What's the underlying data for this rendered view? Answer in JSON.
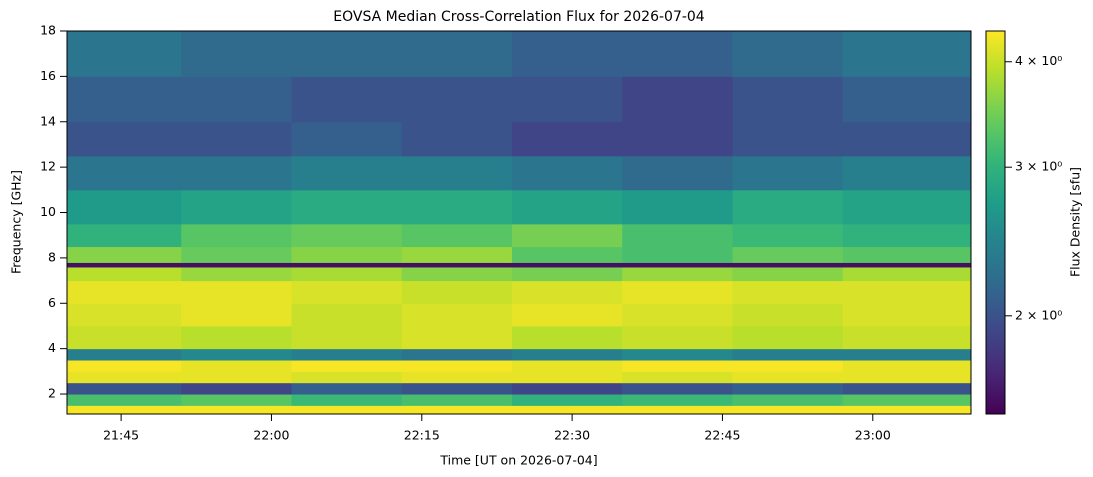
{
  "chart_data": {
    "type": "heatmap",
    "title": "EOVSA Median Cross-Correlation Flux for 2026-07-04",
    "x_label": "Time [UT on 2026-07-04]",
    "y_label": "Frequency [GHz]",
    "colorbar_label": "Flux Density [sfu]",
    "x": [
      1299.6,
      1311,
      1322,
      1333,
      1344,
      1355,
      1366,
      1377,
      1389.8
    ],
    "y": [
      1.12,
      1.5,
      2.0,
      2.5,
      3.0,
      3.5,
      4.0,
      5.0,
      6.0,
      7.0,
      7.6,
      7.8,
      8.5,
      9.5,
      11,
      12.5,
      14,
      16,
      18
    ],
    "z": [
      [
        4.3,
        4.3,
        4.3,
        4.3,
        4.3,
        4.3,
        4.3,
        4.3
      ],
      [
        3.2,
        3.3,
        3.1,
        3.2,
        3.0,
        3.1,
        3.2,
        3.3
      ],
      [
        2.0,
        1.9,
        2.1,
        2.0,
        1.9,
        2.0,
        2.1,
        2.0
      ],
      [
        4.2,
        4.2,
        4.1,
        4.2,
        4.2,
        4.1,
        4.2,
        4.2
      ],
      [
        4.3,
        4.2,
        4.3,
        4.3,
        4.2,
        4.3,
        4.3,
        4.2
      ],
      [
        2.4,
        2.5,
        2.4,
        2.3,
        2.4,
        2.5,
        2.4,
        2.4
      ],
      [
        4.0,
        3.9,
        4.0,
        4.1,
        3.9,
        4.0,
        3.9,
        4.0
      ],
      [
        4.1,
        4.2,
        4.0,
        4.1,
        4.2,
        4.1,
        4.0,
        4.1
      ],
      [
        4.2,
        4.2,
        4.1,
        4.0,
        4.1,
        4.2,
        4.1,
        4.1
      ],
      [
        3.9,
        3.7,
        3.8,
        3.6,
        3.5,
        3.7,
        3.6,
        3.8
      ],
      [
        1.6,
        1.6,
        1.6,
        1.6,
        1.6,
        1.6,
        1.6,
        1.6
      ],
      [
        3.6,
        3.4,
        3.6,
        3.7,
        3.3,
        3.2,
        3.4,
        3.3
      ],
      [
        3.0,
        3.3,
        3.4,
        3.3,
        3.5,
        3.2,
        3.1,
        3.0
      ],
      [
        2.7,
        2.8,
        2.9,
        2.9,
        2.8,
        2.7,
        2.9,
        2.8
      ],
      [
        2.3,
        2.3,
        2.4,
        2.4,
        2.3,
        2.2,
        2.3,
        2.4
      ],
      [
        2.0,
        2.0,
        2.1,
        2.0,
        1.9,
        1.9,
        2.0,
        2.0
      ],
      [
        2.1,
        2.1,
        2.0,
        2.0,
        2.0,
        1.9,
        2.0,
        2.1
      ],
      [
        2.3,
        2.2,
        2.2,
        2.2,
        2.1,
        2.1,
        2.2,
        2.3
      ]
    ],
    "xlim": [
      1299.6,
      1389.8
    ],
    "ylim": [
      1.12,
      18
    ],
    "clim": [
      1.53,
      4.35
    ],
    "colorscale": "viridis",
    "color_log": true,
    "xticks": [
      {
        "value": 1305,
        "label": "21:45"
      },
      {
        "value": 1320,
        "label": "22:00"
      },
      {
        "value": 1335,
        "label": "22:15"
      },
      {
        "value": 1350,
        "label": "22:30"
      },
      {
        "value": 1365,
        "label": "22:45"
      },
      {
        "value": 1380,
        "label": "23:00"
      }
    ],
    "yticks": [
      2,
      4,
      6,
      8,
      10,
      12,
      14,
      16,
      18
    ],
    "cticks": [
      {
        "value": 2,
        "label": "2 × 10⁰"
      },
      {
        "value": 3,
        "label": "3 × 10⁰"
      },
      {
        "value": 4,
        "label": "4 × 10⁰"
      }
    ]
  }
}
